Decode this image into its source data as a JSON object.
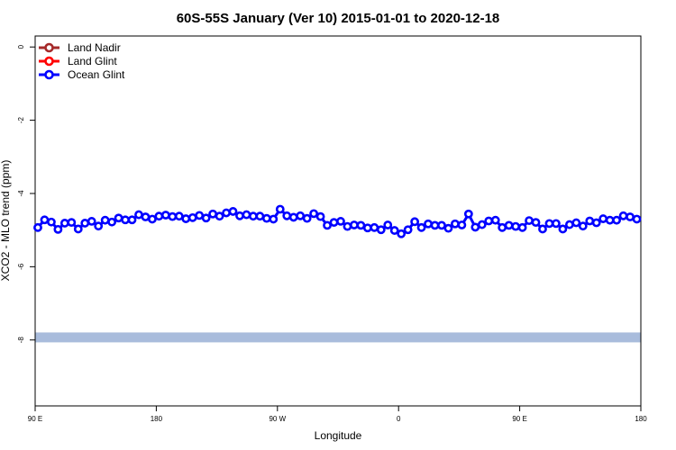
{
  "chart_data": {
    "type": "line",
    "title": "60S-55S January (Ver 10)   2015-01-01 to 2020-12-18",
    "xlabel": "Longitude",
    "ylabel": "XCO2 - MLO trend (ppm)",
    "x_tick_labels": [
      "90 E",
      "180",
      "90 W",
      "0",
      "90 E",
      "180"
    ],
    "x_ticks": [
      90,
      180,
      270,
      360,
      450,
      540
    ],
    "y_ticks": [
      0,
      -2,
      -4,
      -6,
      -8
    ],
    "xlim": [
      90,
      540
    ],
    "ylim": [
      -9.8,
      0.3
    ],
    "grid": false,
    "legend_position": "top-left",
    "legend": [
      {
        "name": "Land Nadir",
        "color": "#a52a2a"
      },
      {
        "name": "Land Glint",
        "color": "#ff0000"
      },
      {
        "name": "Ocean Glint",
        "color": "#0000ff"
      }
    ],
    "series": [
      {
        "name": "Ocean Glint",
        "color": "#0000ff",
        "x": [
          92,
          97,
          102,
          107,
          112,
          117,
          122,
          127,
          132,
          137,
          142,
          147,
          152,
          157,
          162,
          167,
          172,
          177,
          182,
          187,
          192,
          197,
          202,
          207,
          212,
          217,
          222,
          227,
          232,
          237,
          242,
          247,
          252,
          257,
          262,
          267,
          272,
          277,
          282,
          287,
          292,
          297,
          302,
          307,
          312,
          317,
          322,
          327,
          332,
          337,
          342,
          347,
          352,
          357,
          362,
          367,
          372,
          377,
          382,
          387,
          392,
          397,
          402,
          407,
          412,
          417,
          422,
          427,
          432,
          437,
          442,
          447,
          452,
          457,
          462,
          467,
          472,
          477,
          482,
          487,
          492,
          497,
          502,
          507,
          512,
          517,
          522,
          527,
          532,
          537
        ],
        "values": [
          -4.93,
          -4.72,
          -4.78,
          -4.98,
          -4.81,
          -4.79,
          -4.97,
          -4.81,
          -4.76,
          -4.89,
          -4.73,
          -4.78,
          -4.67,
          -4.72,
          -4.72,
          -4.58,
          -4.64,
          -4.7,
          -4.62,
          -4.59,
          -4.63,
          -4.62,
          -4.69,
          -4.66,
          -4.6,
          -4.67,
          -4.56,
          -4.62,
          -4.53,
          -4.49,
          -4.61,
          -4.58,
          -4.62,
          -4.62,
          -4.68,
          -4.7,
          -4.43,
          -4.61,
          -4.65,
          -4.61,
          -4.68,
          -4.55,
          -4.63,
          -4.87,
          -4.79,
          -4.76,
          -4.9,
          -4.86,
          -4.87,
          -4.94,
          -4.93,
          -4.99,
          -4.86,
          -5.01,
          -5.1,
          -4.99,
          -4.77,
          -4.93,
          -4.83,
          -4.87,
          -4.87,
          -4.95,
          -4.83,
          -4.86,
          -4.56,
          -4.92,
          -4.85,
          -4.75,
          -4.73,
          -4.93,
          -4.87,
          -4.9,
          -4.93,
          -4.74,
          -4.79,
          -4.97,
          -4.82,
          -4.82,
          -4.97,
          -4.85,
          -4.8,
          -4.89,
          -4.75,
          -4.8,
          -4.69,
          -4.73,
          -4.73,
          -4.61,
          -4.64,
          -4.7
        ]
      }
    ],
    "band": {
      "y": -7.93,
      "color": "#a9bcdc"
    }
  }
}
